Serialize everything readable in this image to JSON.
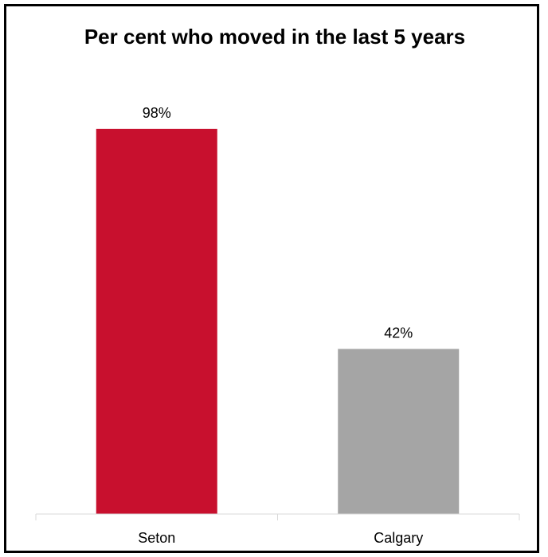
{
  "chart_data": {
    "type": "bar",
    "title": "Per cent who moved in the last 5 years",
    "xlabel": "",
    "ylabel": "",
    "categories": [
      "Seton",
      "Calgary"
    ],
    "values": [
      98,
      42
    ],
    "data_labels": [
      "98%",
      "42%"
    ],
    "colors": [
      "#c8102e",
      "#a5a5a5"
    ],
    "ylim": [
      0,
      100
    ],
    "grid": false,
    "legend": "none"
  }
}
